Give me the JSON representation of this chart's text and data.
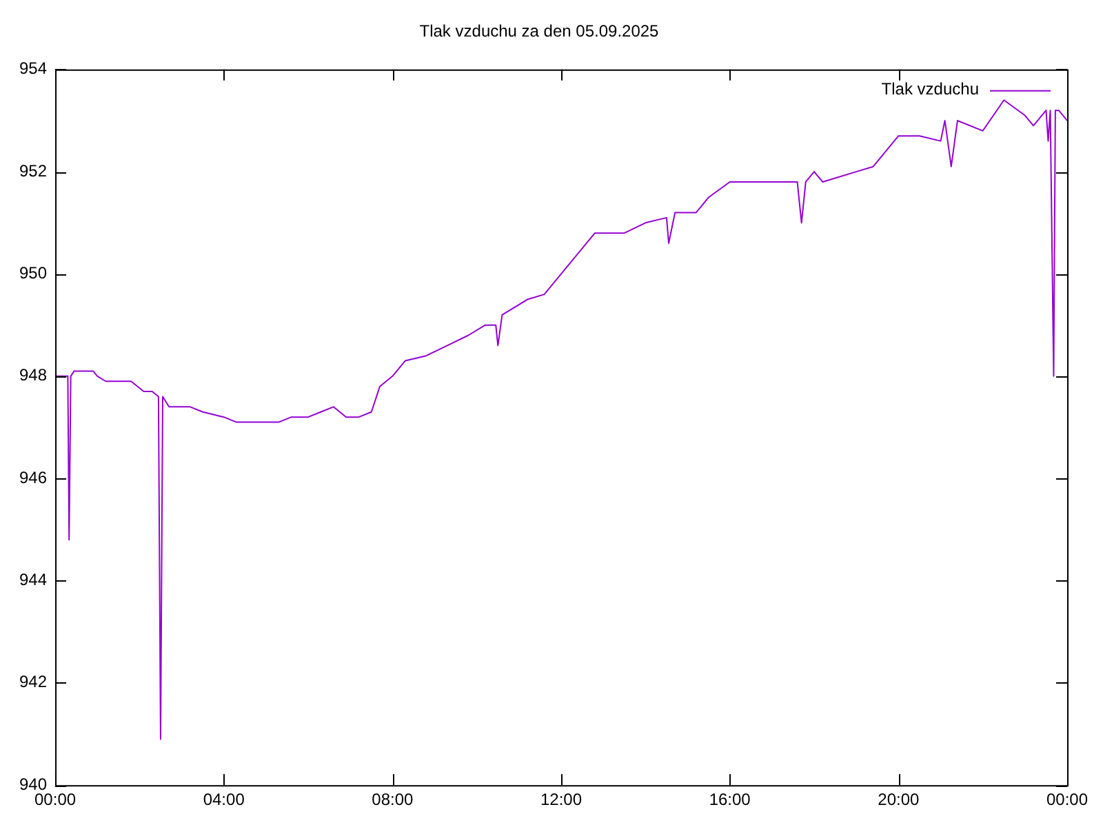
{
  "chart_data": {
    "type": "line",
    "title": "Tlak vzduchu za den 05.09.2025",
    "x": [
      0,
      0.3,
      0.33,
      0.37,
      0.45,
      0.9,
      1.0,
      1.2,
      1.8,
      2.1,
      2.3,
      2.45,
      2.5,
      2.55,
      2.7,
      3.2,
      3.5,
      4.0,
      4.3,
      5.0,
      5.3,
      5.6,
      6.0,
      6.3,
      6.6,
      6.9,
      7.2,
      7.5,
      7.7,
      8.0,
      8.3,
      8.8,
      9.3,
      9.8,
      10.2,
      10.45,
      10.5,
      10.6,
      11.2,
      11.6,
      12.0,
      12.5,
      12.8,
      13.5,
      14.0,
      14.5,
      14.55,
      14.7,
      15.2,
      15.5,
      16.0,
      17.0,
      17.6,
      17.7,
      17.8,
      18.0,
      18.2,
      19.0,
      19.4,
      19.7,
      20.0,
      20.5,
      21.0,
      21.1,
      21.25,
      21.4,
      22.0,
      22.5,
      23.0,
      23.2,
      23.5,
      23.55,
      23.6,
      23.68,
      23.72,
      23.8,
      24.0
    ],
    "series": [
      {
        "name": "Tlak vzduchu",
        "color": "#9400d3",
        "values": [
          948.0,
          948.0,
          944.8,
          948.0,
          948.1,
          948.1,
          948.0,
          947.9,
          947.9,
          947.7,
          947.7,
          947.6,
          940.9,
          947.6,
          947.4,
          947.4,
          947.3,
          947.2,
          947.1,
          947.1,
          947.1,
          947.2,
          947.2,
          947.3,
          947.4,
          947.2,
          947.2,
          947.3,
          947.8,
          948.0,
          948.3,
          948.4,
          948.6,
          948.8,
          949.0,
          949.0,
          948.6,
          949.2,
          949.5,
          949.6,
          950.0,
          950.5,
          950.8,
          950.8,
          951.0,
          951.1,
          950.6,
          951.2,
          951.2,
          951.5,
          951.8,
          951.8,
          951.8,
          951.0,
          951.8,
          952.0,
          951.8,
          952.0,
          952.1,
          952.4,
          952.7,
          952.7,
          952.6,
          953.0,
          952.1,
          953.0,
          952.8,
          953.4,
          953.1,
          952.9,
          953.2,
          952.6,
          953.2,
          948.0,
          953.2,
          953.2,
          953.0
        ]
      }
    ],
    "xlim": [
      0,
      24
    ],
    "xticks": [
      {
        "value": 0,
        "label": "00:00"
      },
      {
        "value": 4,
        "label": "04:00"
      },
      {
        "value": 8,
        "label": "08:00"
      },
      {
        "value": 12,
        "label": "12:00"
      },
      {
        "value": 16,
        "label": "16:00"
      },
      {
        "value": 20,
        "label": "20:00"
      },
      {
        "value": 24,
        "label": "00:00"
      }
    ],
    "ylim": [
      940,
      954
    ],
    "yticks": [
      940,
      942,
      944,
      946,
      948,
      950,
      952,
      954
    ],
    "grid": false,
    "legend": "top right",
    "marker": "none",
    "line_style": "solid"
  }
}
